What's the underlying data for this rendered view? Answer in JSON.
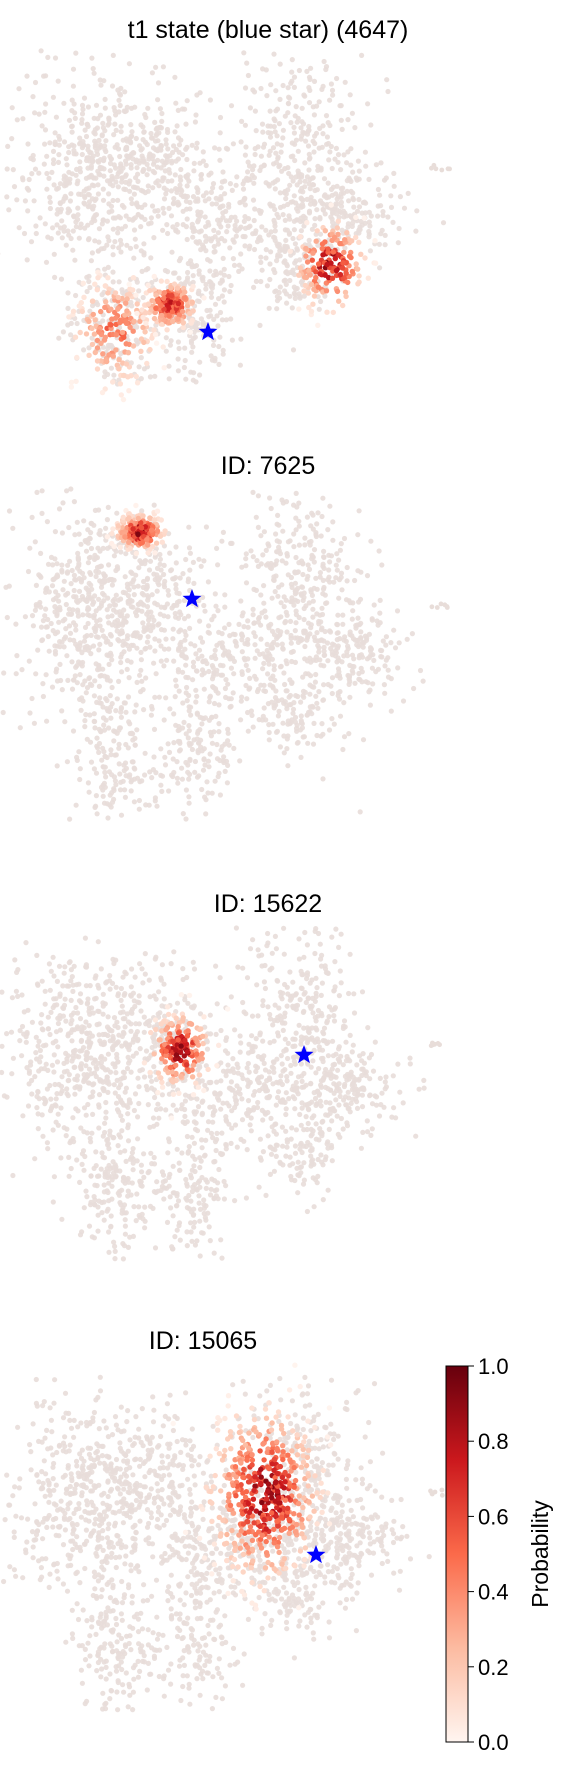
{
  "chart_data": [
    {
      "type": "scatter",
      "title": "t1 state (blue star) (4647)",
      "marker": {
        "shape": "star",
        "color": "#0000ff"
      },
      "hotspots": [
        {
          "label": "left-lower-arm",
          "peak": 0.6
        },
        {
          "label": "center-lower",
          "peak": 0.85
        },
        {
          "label": "right-middle",
          "peak": 1.0
        }
      ]
    },
    {
      "type": "scatter",
      "title": "ID: 7625",
      "marker": {
        "shape": "star",
        "color": "#0000ff"
      },
      "hotspots": [
        {
          "label": "top-left-upper",
          "peak": 1.0
        }
      ]
    },
    {
      "type": "scatter",
      "title": "ID: 15622",
      "marker": {
        "shape": "star",
        "color": "#0000ff"
      },
      "hotspots": [
        {
          "label": "center",
          "peak": 1.0
        }
      ]
    },
    {
      "type": "scatter",
      "title": "ID: 15065",
      "marker": {
        "shape": "star",
        "color": "#0000ff"
      },
      "hotspots": [
        {
          "label": "right-upper-center",
          "peak": 1.0
        }
      ]
    }
  ],
  "colorbar": {
    "label": "Probability",
    "min": 0.0,
    "max": 1.0,
    "ticks": [
      "0.0",
      "0.2",
      "0.4",
      "0.6",
      "0.8",
      "1.0"
    ],
    "colors": [
      "#fff5f0",
      "#fcbba1",
      "#fb6a4a",
      "#cb181d",
      "#67000d"
    ]
  }
}
